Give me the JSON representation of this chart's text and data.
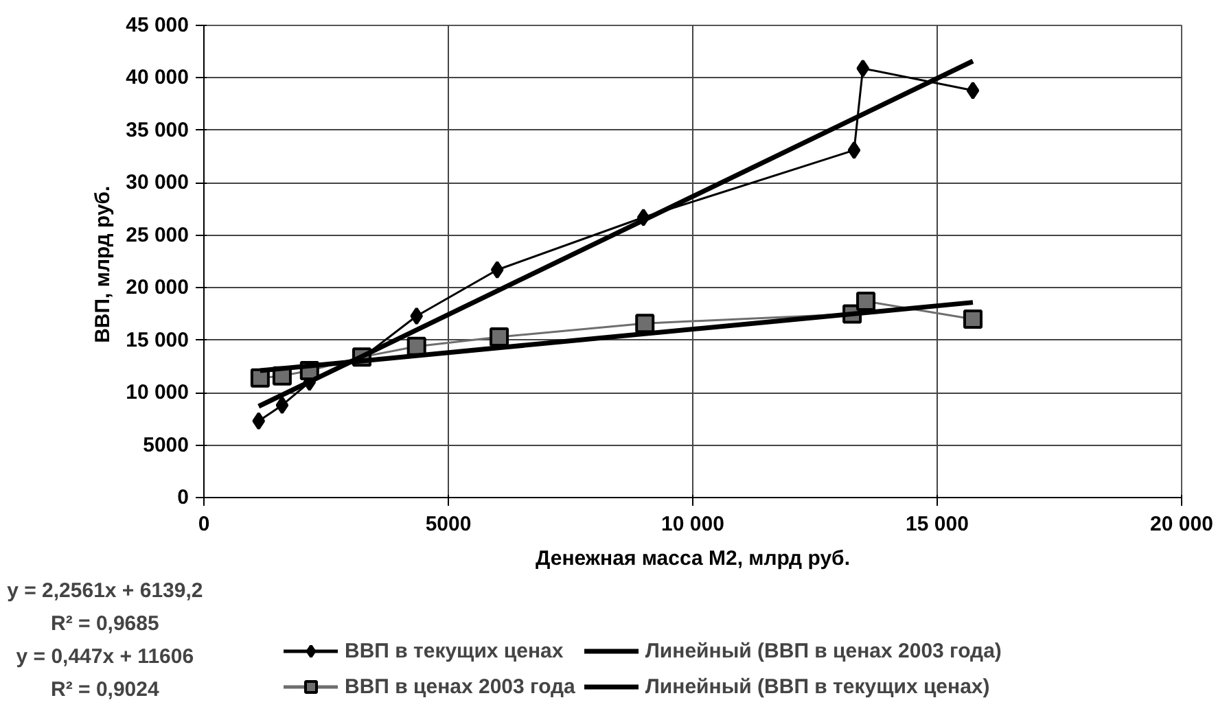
{
  "chart_data": {
    "type": "line",
    "xlabel": "Денежная масса М2, млрд руб.",
    "ylabel": "ВВП, млрд  руб.",
    "xlim": [
      0,
      20000
    ],
    "ylim": [
      0,
      45000
    ],
    "xticks": [
      0,
      5000,
      {
        "value": 10000,
        "label": "10 000"
      },
      {
        "value": 15000,
        "label": "15 000"
      },
      {
        "value": 20000,
        "label": "20 000"
      }
    ],
    "yticks": [
      0,
      5000,
      {
        "value": 10000,
        "label": "10 000"
      },
      {
        "value": 15000,
        "label": "15 000"
      },
      {
        "value": 20000,
        "label": "20 000"
      },
      {
        "value": 25000,
        "label": "25 000"
      },
      {
        "value": 30000,
        "label": "30 000"
      },
      {
        "value": 35000,
        "label": "35 000"
      },
      {
        "value": 40000,
        "label": "40 000"
      },
      {
        "value": 45000,
        "label": "45 000"
      }
    ],
    "grid": true,
    "legend": "bottom",
    "series": [
      {
        "name": "ВВП в текущих ценах",
        "color": "#000000",
        "marker": "diamond",
        "x": [
          1120,
          1600,
          2160,
          3230,
          4350,
          6000,
          8990,
          13300,
          13480,
          15730
        ],
        "values": [
          7300,
          8800,
          11000,
          13300,
          17300,
          21700,
          26700,
          33100,
          40900,
          38800
        ]
      },
      {
        "name": "ВВП в ценах 2003 года",
        "color": "#6e6e6e",
        "marker": "square",
        "x": [
          1150,
          1600,
          2160,
          3230,
          4350,
          6040,
          9020,
          13260,
          13540,
          15730
        ],
        "values": [
          11400,
          11600,
          12100,
          13400,
          14400,
          15300,
          16600,
          17500,
          18700,
          17000
        ]
      },
      {
        "name": "Линейный (ВВП в ценах 2003 года)",
        "color": "#000000",
        "marker": "none",
        "x": [
          1150,
          15730
        ],
        "values": [
          12100,
          18600
        ]
      },
      {
        "name": "Линейный (ВВП в текущих ценах)",
        "color": "#000000",
        "marker": "none",
        "x": [
          1120,
          15730
        ],
        "values": [
          8700,
          41600
        ]
      }
    ],
    "annotations": [
      "y = 2,2561x + 6139,2",
      "R² = 0,9685",
      "y = 0,447x + 11606",
      "R² = 0,9024"
    ]
  }
}
